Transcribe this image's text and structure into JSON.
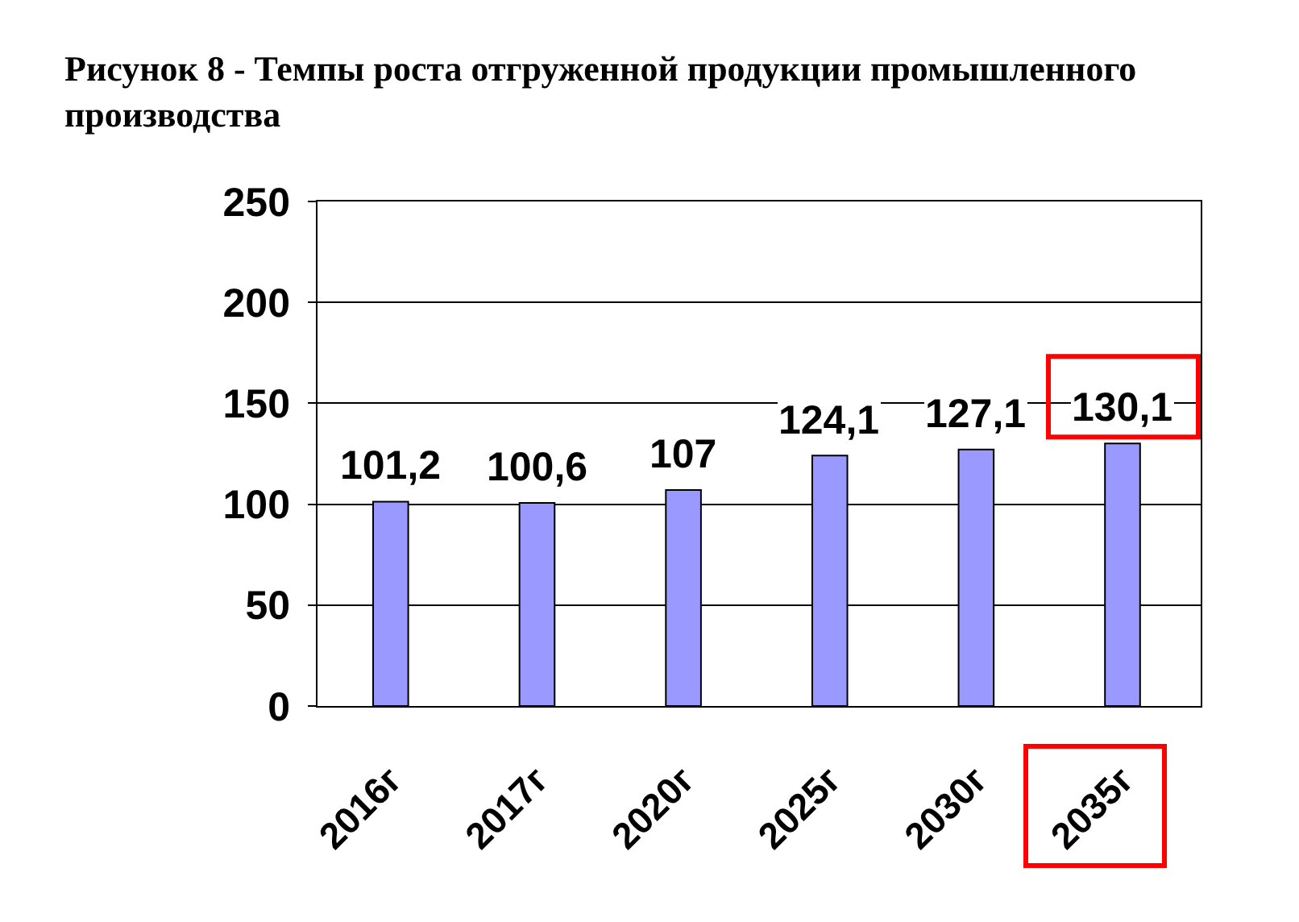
{
  "chart_data": {
    "type": "bar",
    "title": "Рисунок 8 - Темпы роста отгруженной продукции промышленного производства",
    "categories": [
      "2016г",
      "2017г",
      "2020г",
      "2025г",
      "2030г",
      "2035г"
    ],
    "values": [
      101.2,
      100.6,
      107,
      124.1,
      127.1,
      130.1
    ],
    "value_labels": [
      "101,2",
      "100,6",
      "107",
      "124,1",
      "127,1",
      "130,1"
    ],
    "color": "#9999ff",
    "ylim": [
      0,
      250
    ],
    "yticks": [
      0,
      50,
      100,
      150,
      200,
      250
    ],
    "grid": "y"
  }
}
